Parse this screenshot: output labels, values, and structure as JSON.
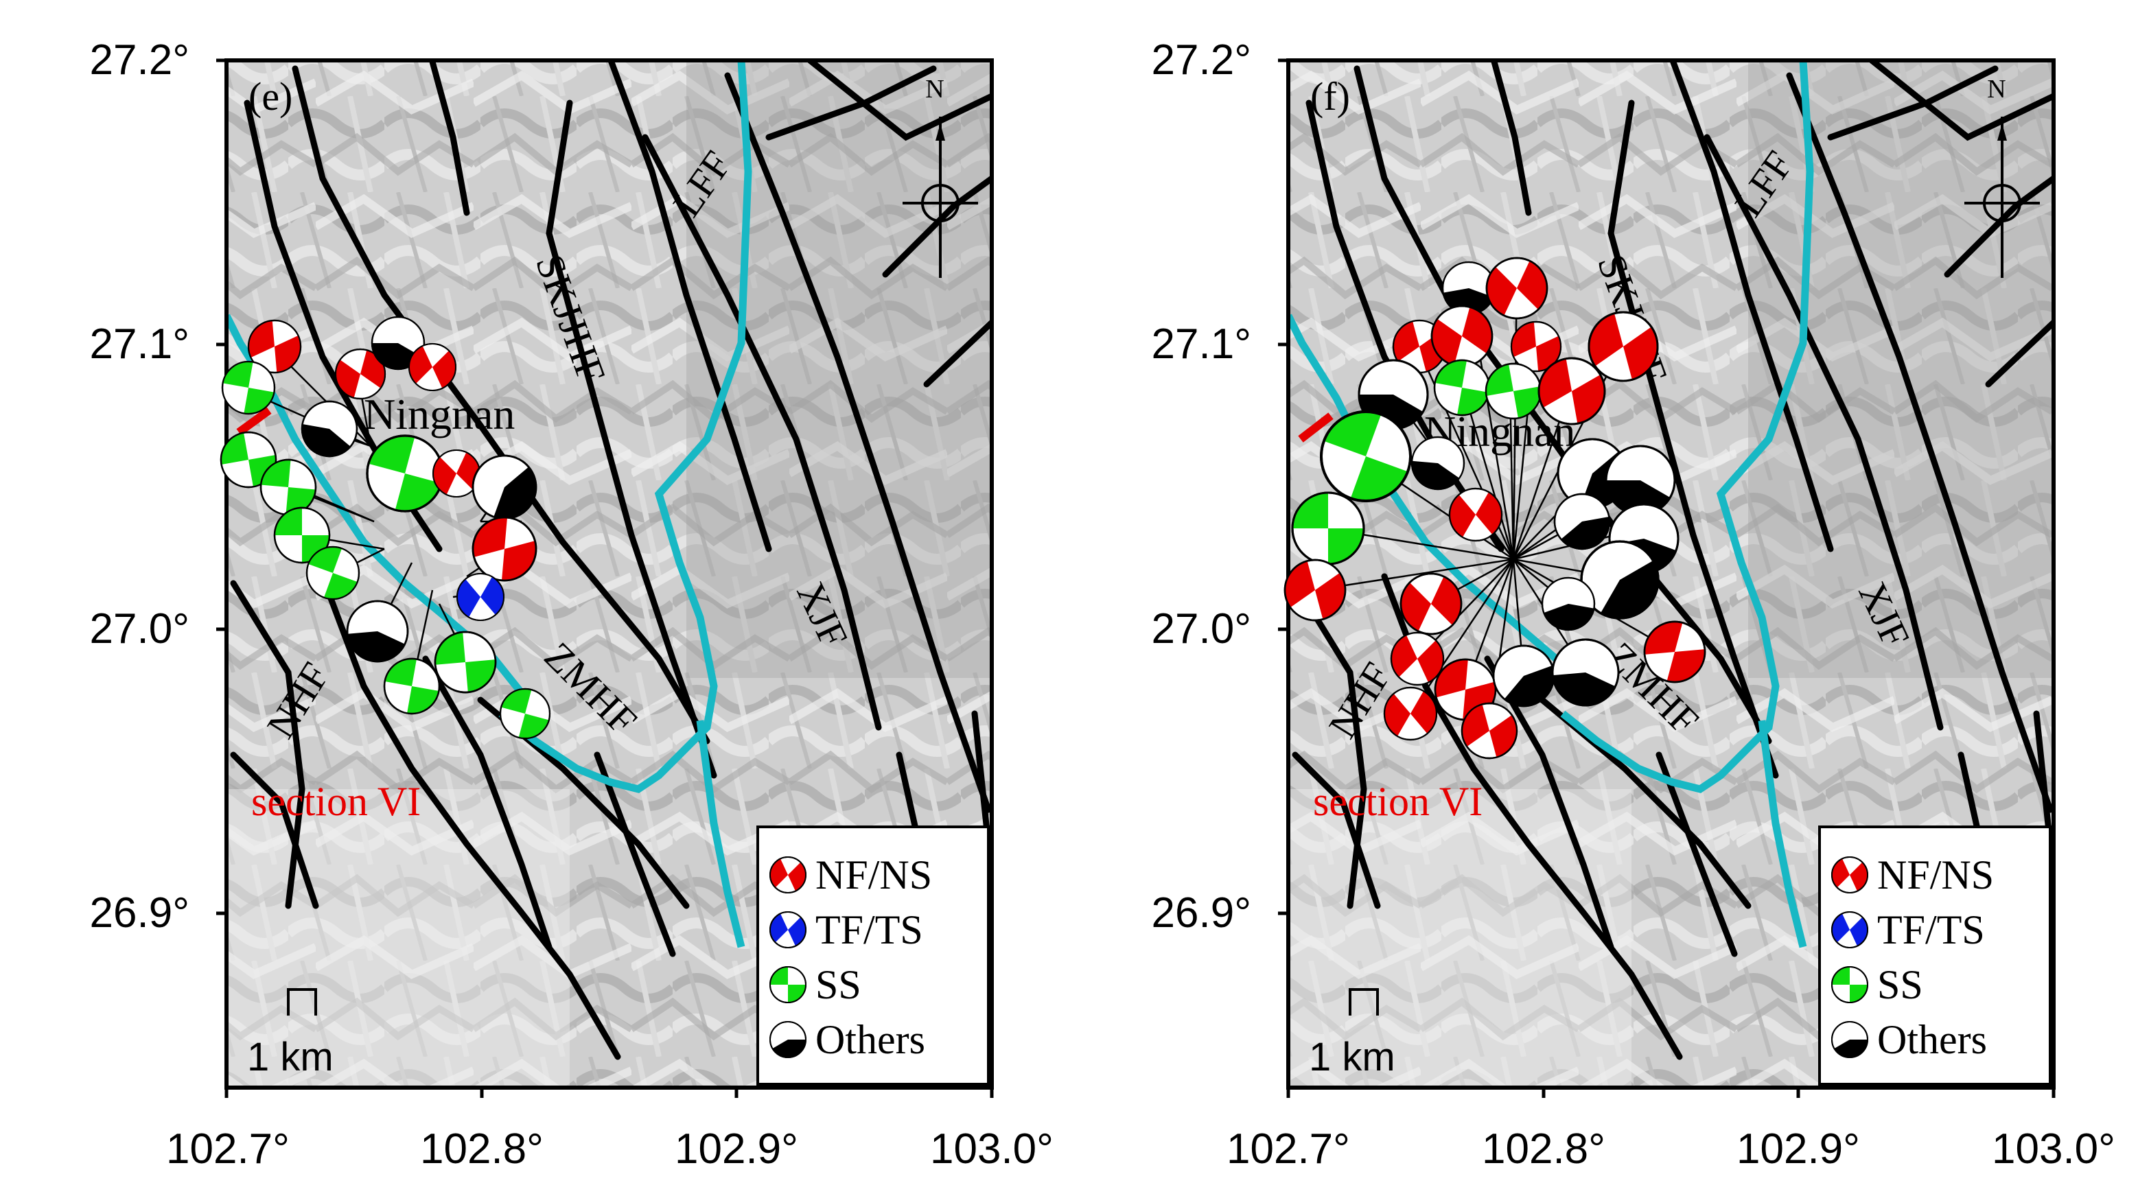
{
  "colors": {
    "normal": "#e60000",
    "thrust": "#0a1ee6",
    "strike_slip": "#10dc10",
    "others": "#000000",
    "river": "#18b8c4",
    "fault": "#000000",
    "section_label": "#e60000"
  },
  "axes": {
    "lon_ticks": [
      "102.7°",
      "102.8°",
      "102.9°",
      "103.0°"
    ],
    "lat_ticks": [
      "27.2°",
      "27.1°",
      "27.0°",
      "26.9°"
    ],
    "lon_range": [
      102.7,
      103.0
    ],
    "lat_range": [
      26.85,
      27.21
    ]
  },
  "labels": {
    "town": "Ningnan",
    "section": "section  VI",
    "north": "N",
    "scale": "1 km",
    "faults": {
      "LFF": "LFF",
      "SKJJHF": "SKJJHF",
      "XJF": "XJF",
      "NHF": "NHF",
      "ZMHF": "ZMHF"
    }
  },
  "legend": [
    {
      "type": "normal",
      "label": "NF/NS"
    },
    {
      "type": "thrust",
      "label": "TF/TS"
    },
    {
      "type": "strike_slip",
      "label": "SS"
    },
    {
      "type": "others",
      "label": "Others"
    }
  ],
  "panels": [
    {
      "id": "e",
      "label": "(e)"
    },
    {
      "id": "f",
      "label": "(f)"
    }
  ]
}
